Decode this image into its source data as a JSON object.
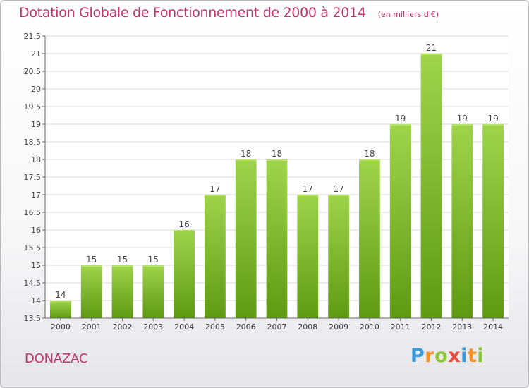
{
  "header": {
    "title": "Dotation Globale de Fonctionnement de 2000 à 2014",
    "subtitle": "(en milliers d'€)"
  },
  "commune": "DONAZAC",
  "logo": {
    "text": "Proxiti",
    "letters": [
      {
        "ch": "P",
        "color": "#3a9ad9"
      },
      {
        "ch": "r",
        "color": "#f0932b"
      },
      {
        "ch": "o",
        "color": "#8cc43c"
      },
      {
        "ch": "x",
        "color": "#e74c3c"
      },
      {
        "ch": "i",
        "color": "#3a9ad9"
      },
      {
        "ch": "t",
        "color": "#f0932b"
      },
      {
        "ch": "i",
        "color": "#8cc43c"
      }
    ]
  },
  "colors": {
    "accent": "#c0336b",
    "bar_light": "#9fd44a",
    "bar_dark": "#5e9a12",
    "grid": "#d9d9d9"
  },
  "chart_data": {
    "type": "bar",
    "categories": [
      "2000",
      "2001",
      "2002",
      "2003",
      "2004",
      "2005",
      "2006",
      "2007",
      "2008",
      "2009",
      "2010",
      "2011",
      "2012",
      "2013",
      "2014"
    ],
    "values": [
      14,
      15,
      15,
      15,
      16,
      17,
      18,
      18,
      17,
      17,
      18,
      19,
      21,
      19,
      19
    ],
    "ylim": [
      13.5,
      21.5
    ],
    "yticks": [
      "13.5",
      "14",
      "14.5",
      "15",
      "15.5",
      "16",
      "16.5",
      "17",
      "17.5",
      "18",
      "18.5",
      "19",
      "19.5",
      "20",
      "20.5",
      "21",
      "21.5"
    ],
    "grid": "horizontal",
    "data_labels": true
  }
}
